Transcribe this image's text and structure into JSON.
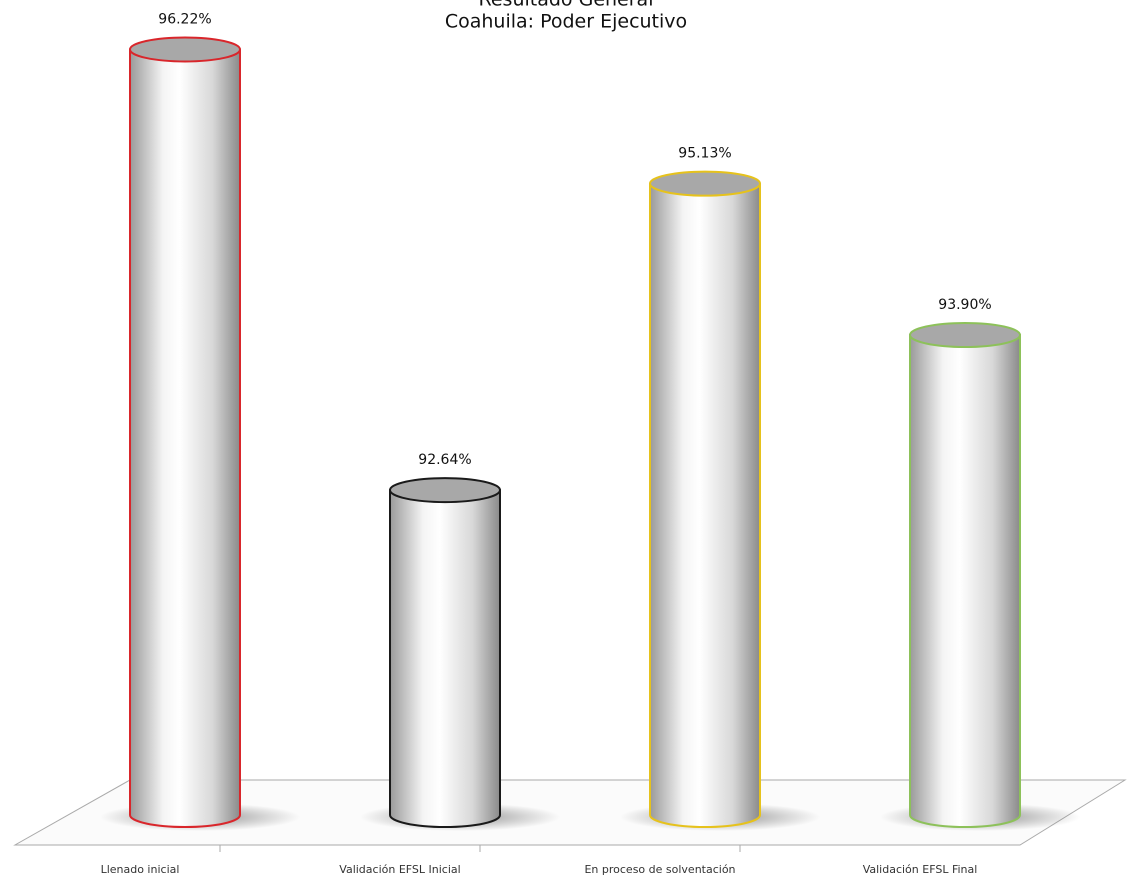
{
  "chart_data": {
    "type": "cylinder",
    "title": "Resultado General",
    "subtitle": "Coahuila: Poder Ejecutivo",
    "categories": [
      "Llenado inicial",
      "Validación EFSL Inicial",
      "En proceso de solventación",
      "Validación EFSL Final"
    ],
    "values": [
      96.22,
      92.64,
      95.13,
      93.9
    ],
    "value_labels": [
      "96.22%",
      "92.64%",
      "95.13%",
      "93.90%"
    ],
    "colors": [
      "#d9262b",
      "#1a1a1a",
      "#e6c21c",
      "#8dc15a"
    ],
    "ylim": [
      90,
      96.5
    ]
  }
}
